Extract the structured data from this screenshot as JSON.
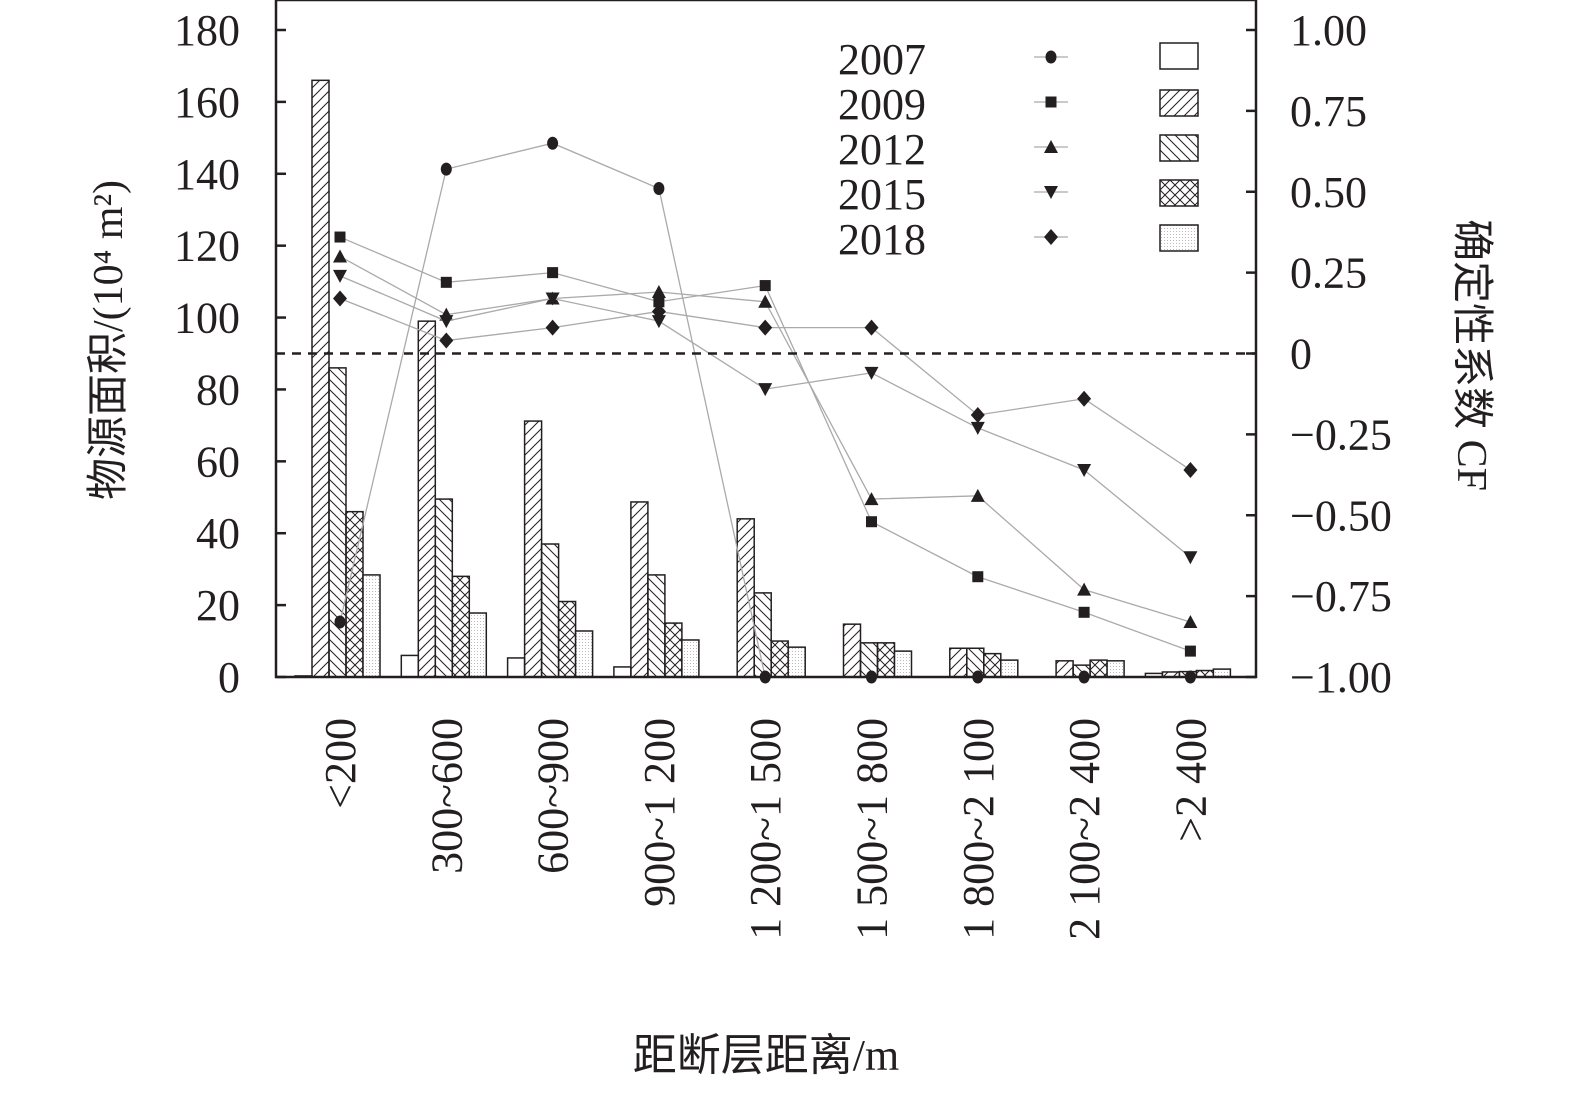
{
  "chart_data": {
    "type": "bar+line",
    "xlabel": "距断层距离/m",
    "ylabel_left": "物源面积/(10⁴ m²)",
    "ylabel_right": "确定性系数 CF",
    "ylim_left": [
      0,
      180
    ],
    "ylim_right": [
      -1.0,
      1.0
    ],
    "yticks_left": [
      "0",
      "20",
      "40",
      "60",
      "80",
      "100",
      "120",
      "140",
      "160",
      "180"
    ],
    "yticks_right": [
      "−1.00",
      "−0.75",
      "−0.50",
      "−0.25",
      "0",
      "0.25",
      "0.50",
      "0.75",
      "1.00"
    ],
    "categories": [
      "<200",
      "300~600",
      "600~900",
      "900~1 200",
      "1 200~1 500",
      "1 500~1 800",
      "1 800~2 100",
      "2 100~2 400",
      ">2 400"
    ],
    "reference_line": {
      "axis": "right",
      "value": 0,
      "style": "dashed"
    },
    "legend_position": "top-right",
    "bar_series": [
      {
        "name": "2007",
        "pattern": "blank",
        "values": [
          0.3,
          6,
          5.3,
          2.8,
          0,
          0,
          0,
          0,
          1
        ]
      },
      {
        "name": "2009",
        "pattern": "forward-hatch",
        "values": [
          166,
          99,
          71.2,
          48.7,
          44,
          14.7,
          8,
          4.5,
          1.4
        ]
      },
      {
        "name": "2012",
        "pattern": "back-hatch",
        "values": [
          86,
          49.5,
          37,
          28.4,
          23.4,
          9.5,
          8,
          3.3,
          1.5
        ]
      },
      {
        "name": "2015",
        "pattern": "crosshatch",
        "values": [
          46,
          28,
          21,
          15,
          10,
          9.5,
          6.5,
          4.7,
          1.8
        ]
      },
      {
        "name": "2018",
        "pattern": "dotted",
        "values": [
          28.4,
          17.8,
          12.8,
          10.3,
          8.3,
          7.2,
          4.7,
          4.5,
          2.2
        ]
      }
    ],
    "line_series": [
      {
        "name": "2007",
        "marker": "circle",
        "values": [
          -0.83,
          0.57,
          0.65,
          0.51,
          -1.0,
          -1.0,
          -1.0,
          -1.0,
          -1.0
        ]
      },
      {
        "name": "2009",
        "marker": "square",
        "values": [
          0.36,
          0.22,
          0.25,
          0.16,
          0.21,
          -0.52,
          -0.69,
          -0.8,
          -0.92
        ]
      },
      {
        "name": "2012",
        "marker": "triangle-up",
        "values": [
          0.3,
          0.12,
          0.17,
          0.19,
          0.16,
          -0.45,
          -0.44,
          -0.73,
          -0.83
        ]
      },
      {
        "name": "2015",
        "marker": "triangle-down",
        "values": [
          0.24,
          0.1,
          0.17,
          0.1,
          -0.11,
          -0.06,
          -0.23,
          -0.36,
          -0.63
        ]
      },
      {
        "name": "2018",
        "marker": "diamond",
        "values": [
          0.17,
          0.04,
          0.08,
          0.13,
          0.08,
          0.08,
          -0.19,
          -0.14,
          -0.36
        ]
      }
    ],
    "colors": {
      "ink": "#231f20",
      "line": "#aaaaaa"
    }
  }
}
